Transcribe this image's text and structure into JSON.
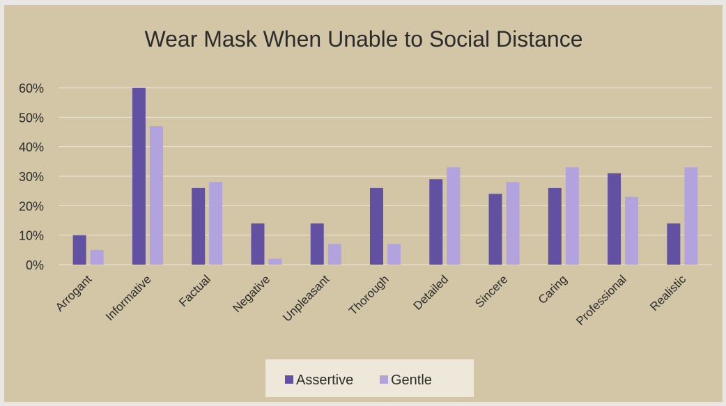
{
  "chart_data": {
    "type": "bar",
    "title": "Wear Mask When Unable to Social Distance",
    "xlabel": "",
    "ylabel": "",
    "categories": [
      "Arrogant",
      "Informative",
      "Factual",
      "Negative",
      "Unpleasant",
      "Thorough",
      "Detailed",
      "Sincere",
      "Caring",
      "Professional",
      "Realistic"
    ],
    "series": [
      {
        "name": "Assertive",
        "color": "#6250a2",
        "values": [
          10,
          60,
          26,
          14,
          14,
          26,
          29,
          24,
          26,
          31,
          14
        ]
      },
      {
        "name": "Gentle",
        "color": "#b2a3df",
        "values": [
          5,
          47,
          28,
          2,
          7,
          7,
          33,
          28,
          33,
          23,
          33
        ]
      }
    ],
    "ylim": [
      0,
      60
    ],
    "yticks": [
      0,
      10,
      20,
      30,
      40,
      50,
      60
    ],
    "ytick_format": "percent",
    "grid": true,
    "gridline_color": "#ece6d4",
    "legend_position": "bottom"
  }
}
